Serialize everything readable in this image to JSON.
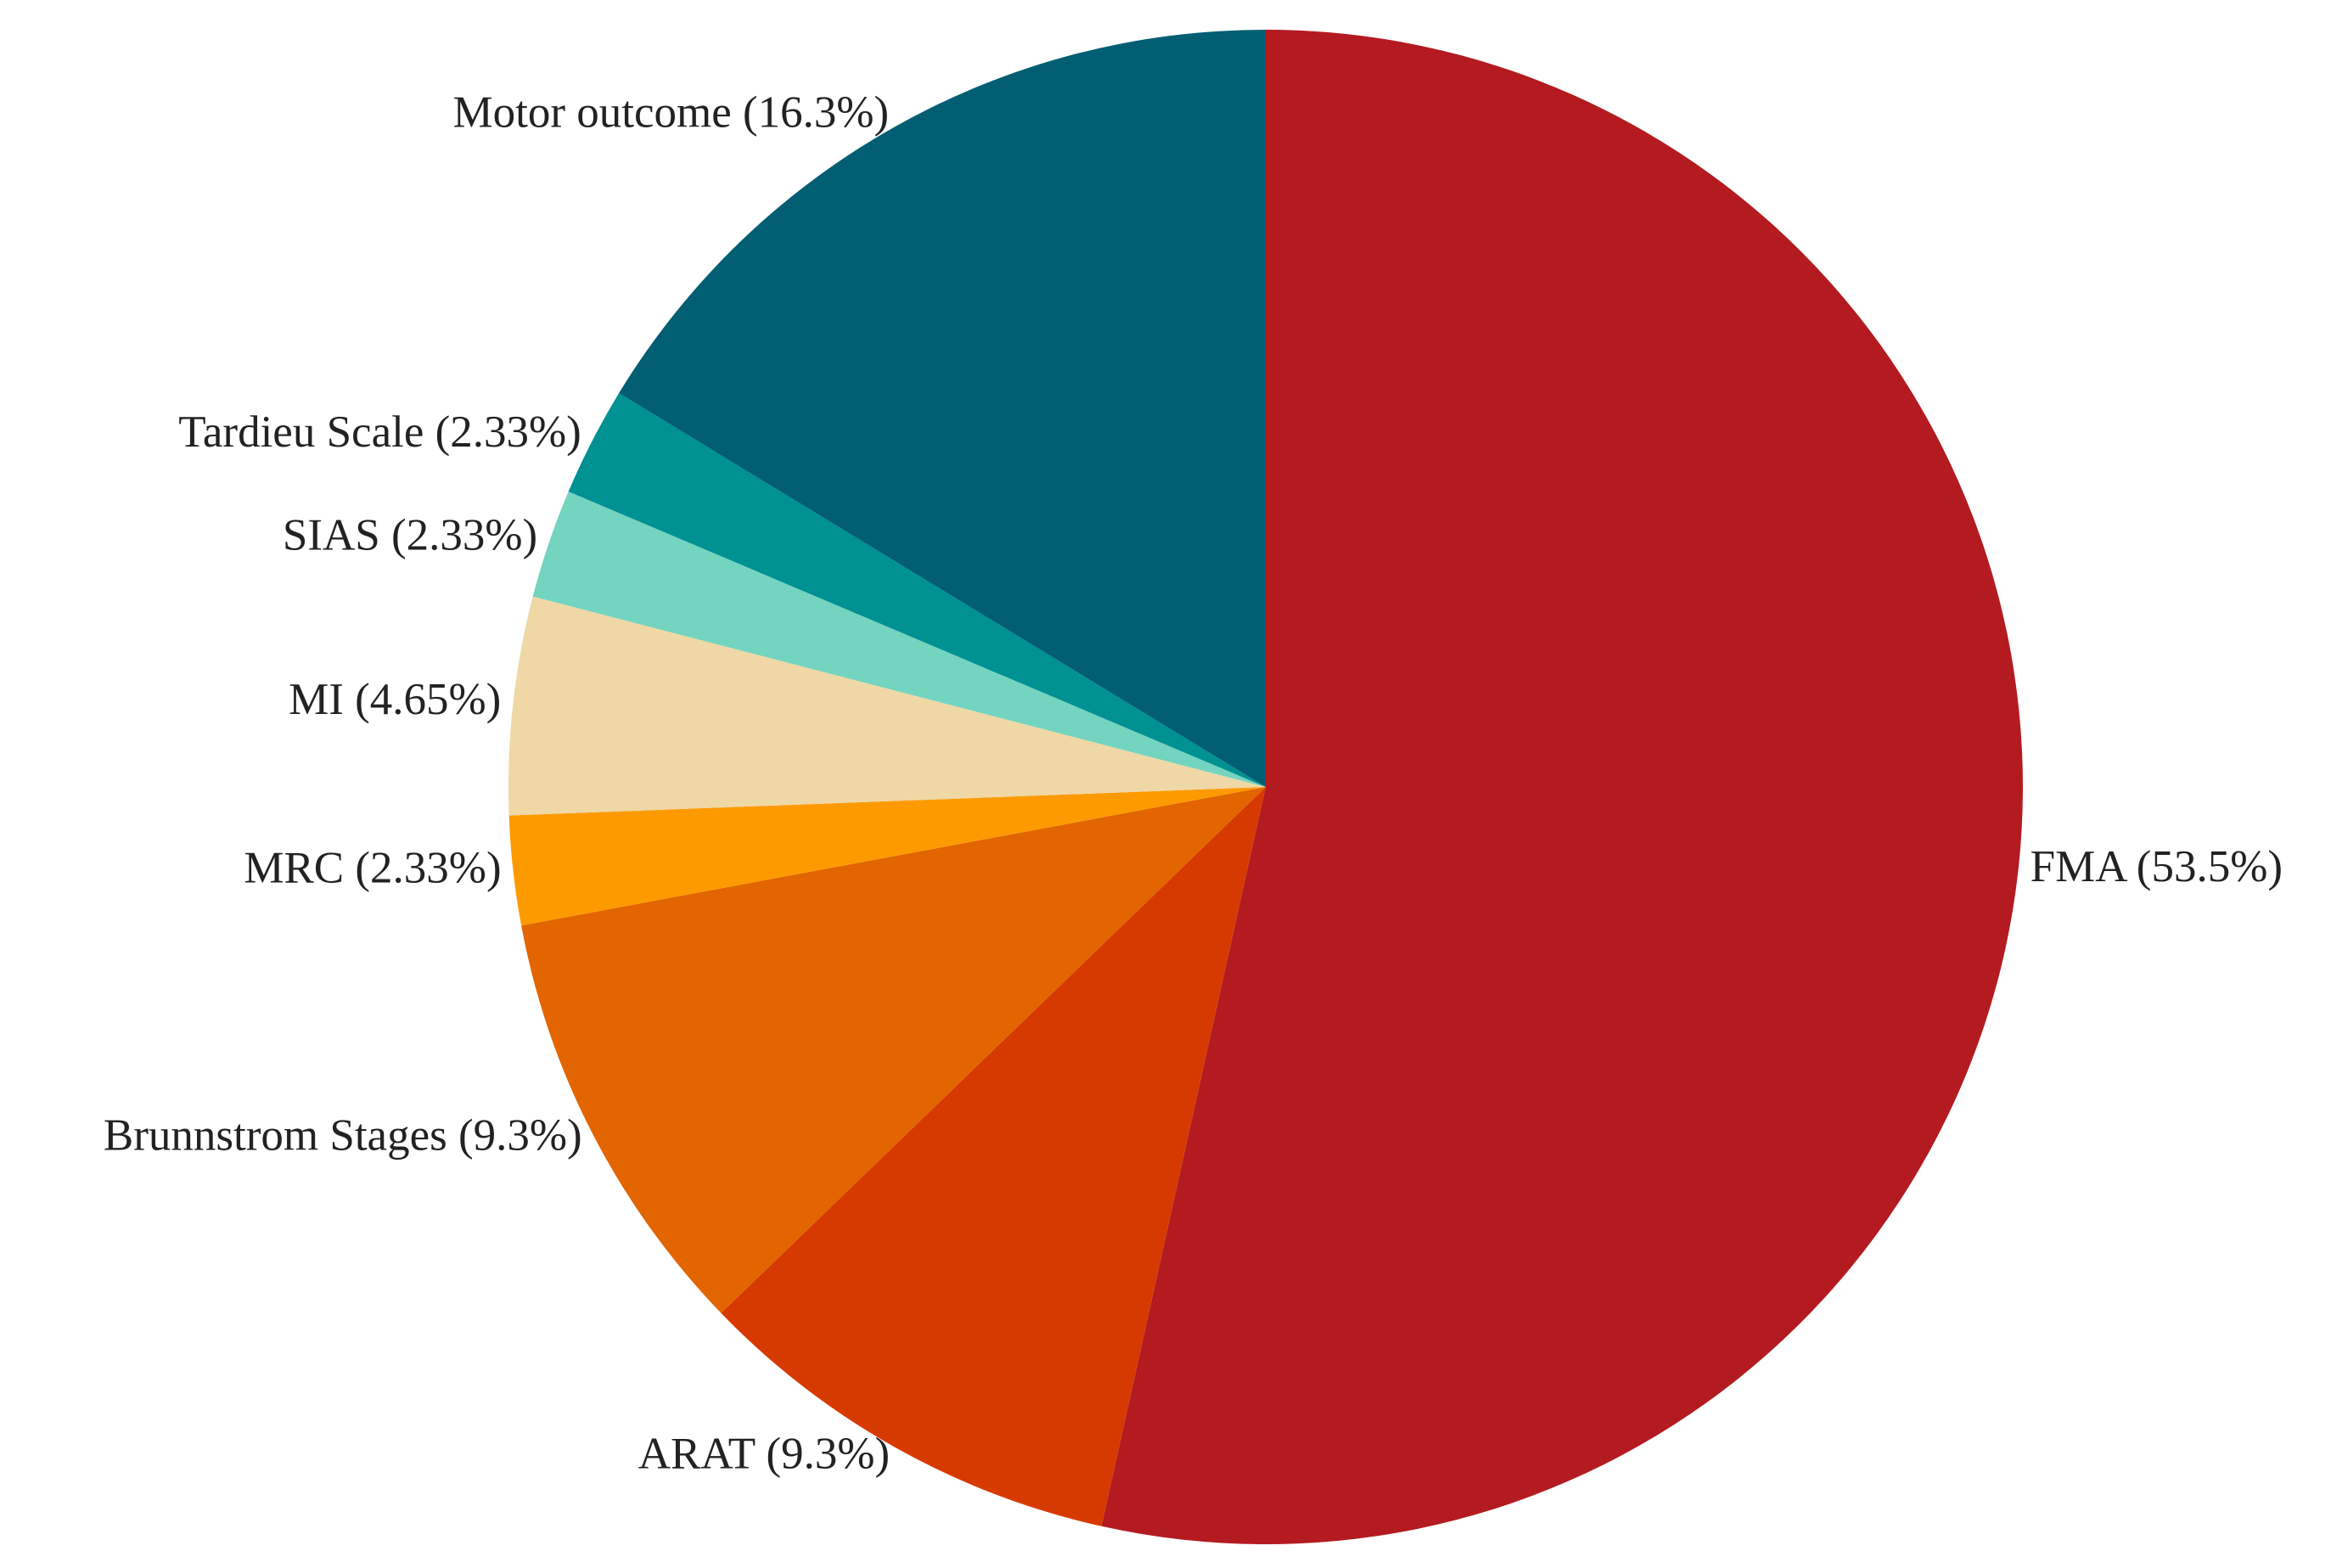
{
  "chart_data": {
    "type": "pie",
    "start_angle_deg": 90,
    "direction": "clockwise",
    "slices": [
      {
        "label": "FMA (53.5%)",
        "name": "FMA",
        "value": 53.5,
        "color": "#b31b21"
      },
      {
        "label": "ARAT (9.3%)",
        "name": "ARAT",
        "value": 9.3,
        "color": "#d73a00"
      },
      {
        "label": "Brunnstrom Stages (9.3%)",
        "name": "Brunnstrom Stages",
        "value": 9.3,
        "color": "#e26500"
      },
      {
        "label": "MRC (2.33%)",
        "name": "MRC",
        "value": 2.33,
        "color": "#fd9a00"
      },
      {
        "label": "MI (4.65%)",
        "name": "MI",
        "value": 4.65,
        "color": "#efd8a6"
      },
      {
        "label": "SIAS (2.33%)",
        "name": "SIAS",
        "value": 2.33,
        "color": "#73d4bf"
      },
      {
        "label": "Tardieu Scale (2.33%)",
        "name": "Tardieu Scale",
        "value": 2.33,
        "color": "#009193"
      },
      {
        "label": "Motor outcome (16.3%)",
        "name": "Motor outcome",
        "value": 16.3,
        "color": "#015e73"
      }
    ]
  }
}
